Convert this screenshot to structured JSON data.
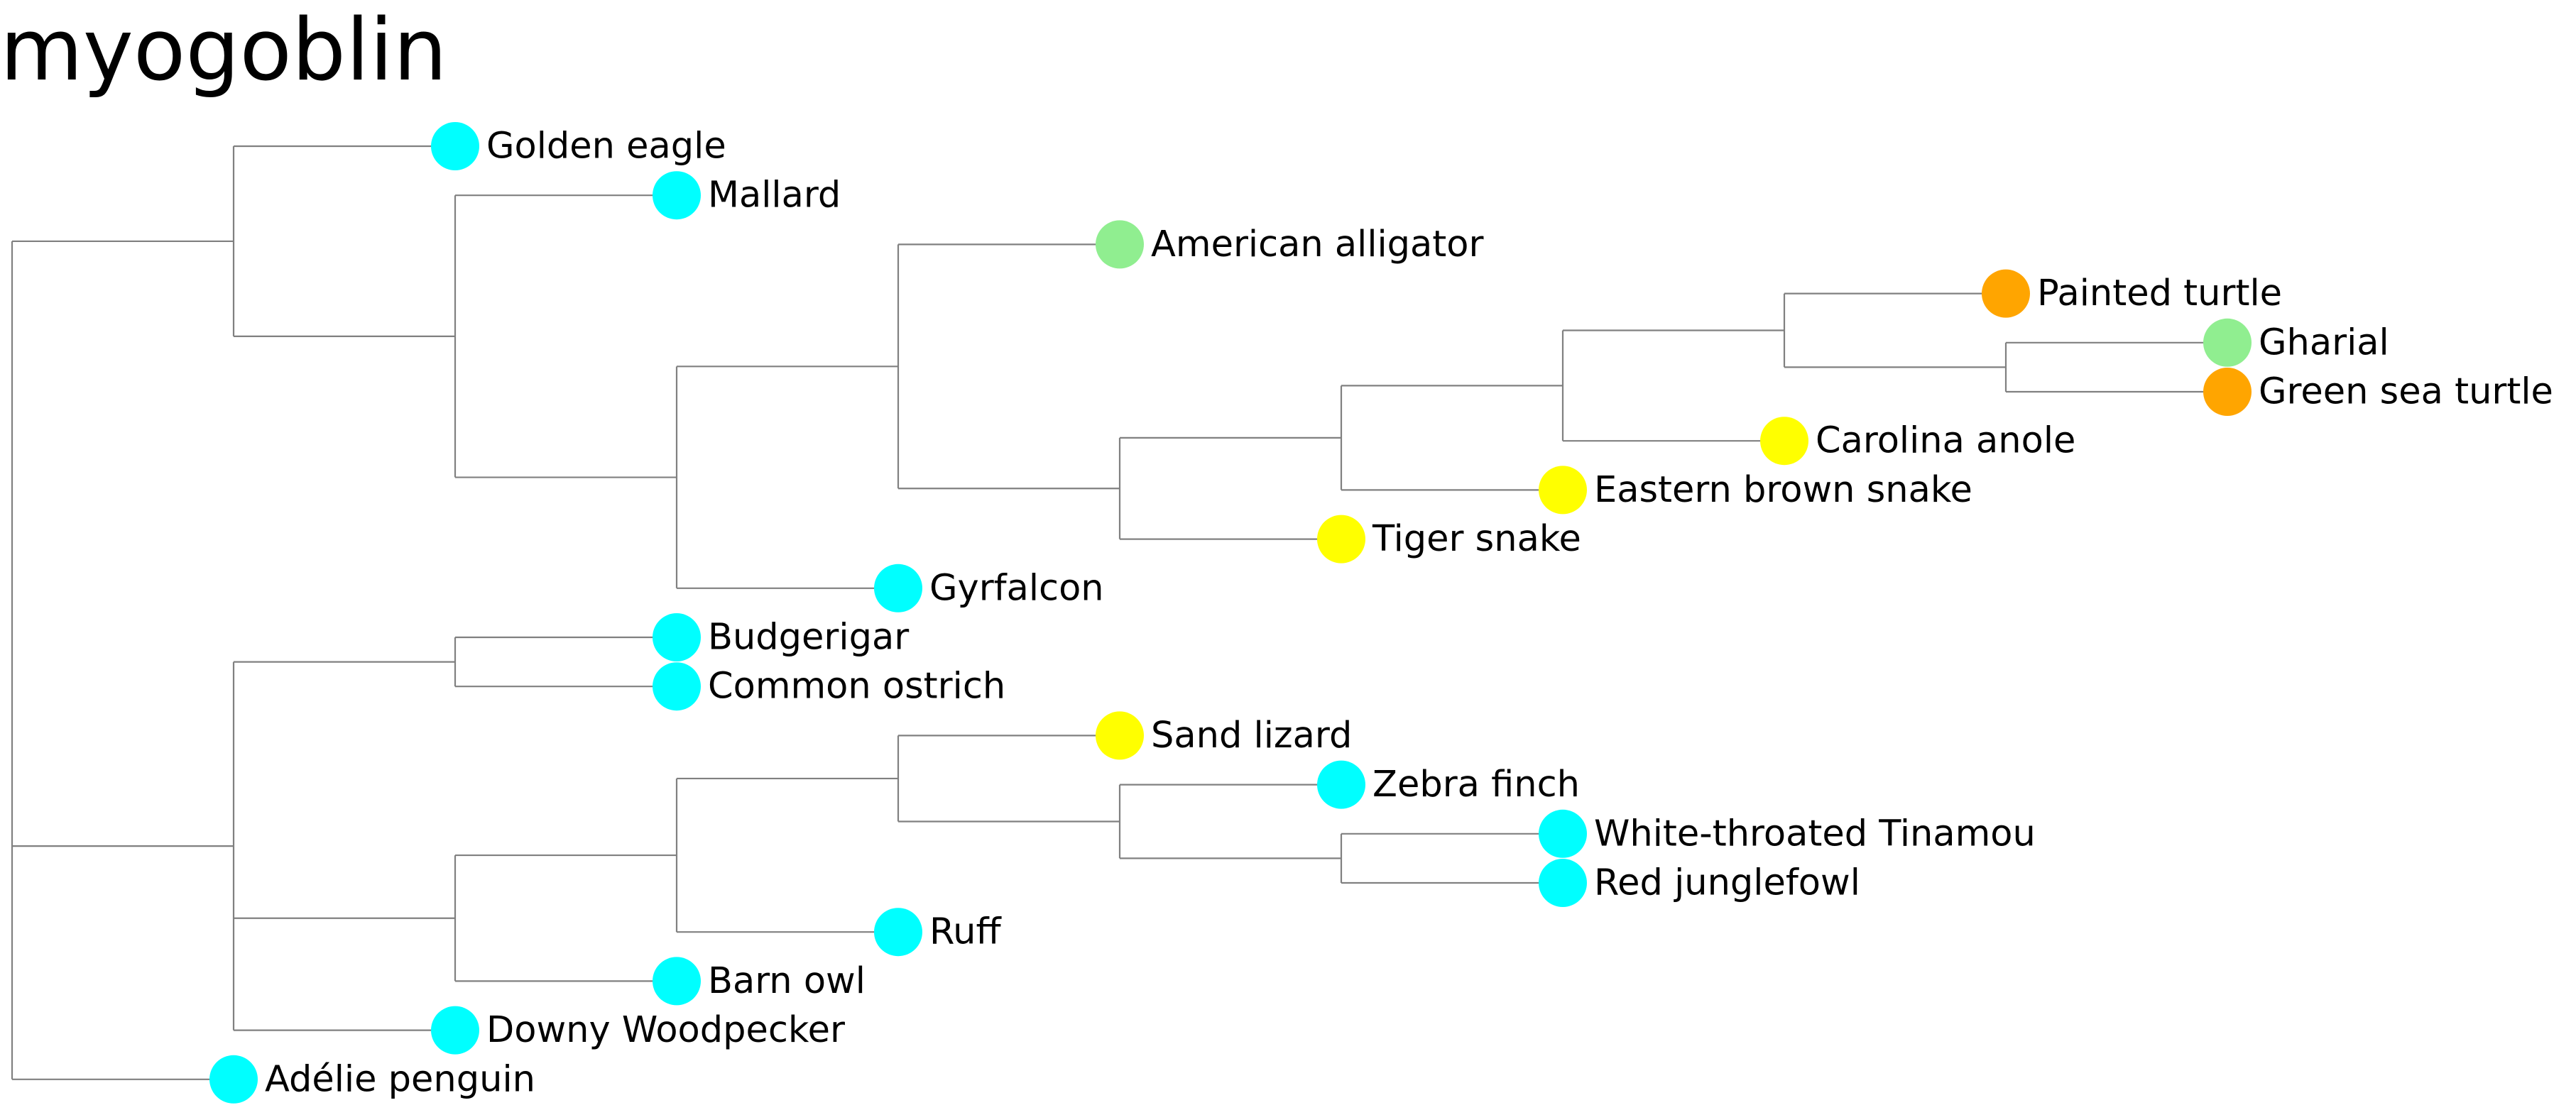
{
  "title": "myogoblin",
  "colors": {
    "bird": "#00FFFF",
    "crocodilian": "#90EE90",
    "turtle": "#FFA500",
    "squamate": "#FFFF00",
    "branch": "#808080"
  },
  "tree": {
    "children": [
      {
        "children": [
          {
            "name": "Golden eagle",
            "group": "bird"
          },
          {
            "children": [
              {
                "name": "Mallard",
                "group": "bird"
              },
              {
                "children": [
                  {
                    "children": [
                      {
                        "name": "American alligator",
                        "group": "crocodilian"
                      },
                      {
                        "children": [
                          {
                            "children": [
                              {
                                "children": [
                                  {
                                    "children": [
                                      {
                                        "name": "Painted turtle",
                                        "group": "turtle"
                                      },
                                      {
                                        "children": [
                                          {
                                            "name": "Gharial",
                                            "group": "crocodilian"
                                          },
                                          {
                                            "name": "Green sea turtle",
                                            "group": "turtle"
                                          }
                                        ]
                                      }
                                    ]
                                  },
                                  {
                                    "name": "Carolina anole",
                                    "group": "squamate"
                                  }
                                ]
                              },
                              {
                                "name": "Eastern brown snake",
                                "group": "squamate"
                              }
                            ]
                          },
                          {
                            "name": "Tiger snake",
                            "group": "squamate"
                          }
                        ]
                      }
                    ]
                  },
                  {
                    "name": "Gyrfalcon",
                    "group": "bird"
                  }
                ]
              }
            ]
          }
        ]
      },
      {
        "children": [
          {
            "children": [
              {
                "name": "Budgerigar",
                "group": "bird"
              },
              {
                "name": "Common ostrich",
                "group": "bird"
              }
            ]
          },
          {
            "children": [
              {
                "children": [
                  {
                    "children": [
                      {
                        "name": "Sand lizard",
                        "group": "squamate"
                      },
                      {
                        "children": [
                          {
                            "name": "Zebra finch",
                            "group": "bird"
                          },
                          {
                            "children": [
                              {
                                "name": "White-throated Tinamou",
                                "group": "bird"
                              },
                              {
                                "name": "Red junglefowl",
                                "group": "bird"
                              }
                            ]
                          }
                        ]
                      }
                    ]
                  },
                  {
                    "name": "Ruff",
                    "group": "bird"
                  }
                ]
              },
              {
                "name": "Barn owl",
                "group": "bird"
              }
            ]
          },
          {
            "name": "Downy Woodpecker",
            "group": "bird"
          }
        ]
      },
      {
        "name": "Adélie penguin",
        "group": "bird"
      }
    ]
  }
}
